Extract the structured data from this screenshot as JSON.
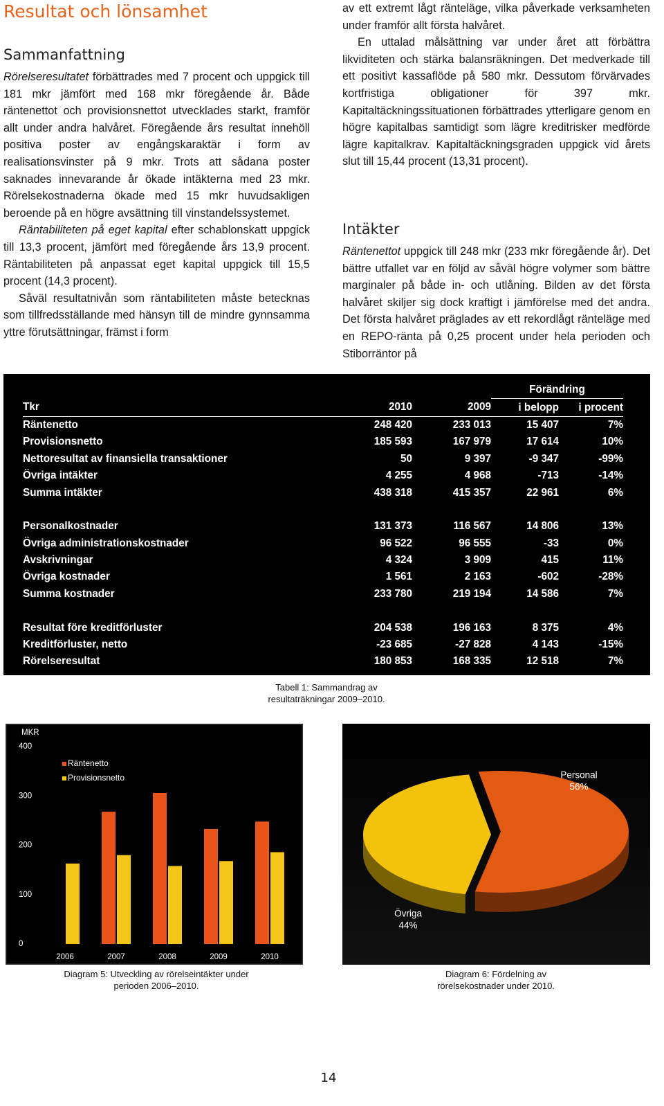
{
  "header": {
    "title": "Resultat och lönsamhet"
  },
  "left_column": {
    "heading": "Sammanfattning",
    "paragraphs": [
      {
        "lead": "Rörelseresultatet",
        "text": "förbättrades med 7 procent och uppgick till 181 mkr jämfört med 168 mkr föregående år. Både räntenettot och provisionsnettot utvecklades starkt, framför allt under andra halvåret. Föregående års resultat innehöll positiva poster av engångskaraktär i form av realisationsvinster på 9 mkr. Trots att sådana poster saknades innevarande år ökade intäkterna med 23 mkr. Rörelsekostnaderna ökade med 15 mkr huvudsakligen beroende på en högre avsättning till vinstandelssystemet."
      },
      {
        "lead": "Räntabiliteten på eget kapital",
        "text": "efter schablonskatt uppgick till 13,3 procent, jämfört med föregående års 13,9 procent. Räntabiliteten på anpassat eget kapital uppgick till 15,5 procent (14,3 procent)."
      },
      {
        "text": "Såväl resultatnivån som räntabiliteten måste betecknas som tillfredsställande med hänsyn till de mindre gynnsamma yttre förutsättningar, främst i form"
      }
    ]
  },
  "right_column": {
    "paragraphs": [
      {
        "text": "av ett extremt lågt ränteläge, vilka påverkade verksamheten under framför allt första halvåret."
      },
      {
        "text": "En uttalad målsättning var under året att förbättra likviditeten och stärka balansräkningen. Det medverkade till ett positivt kassaflöde på 580 mkr. Dessutom förvärvades kortfristiga obligationer för 397 mkr. Kapitaltäckningssituationen förbättrades ytterligare genom en högre kapitalbas samtidigt som lägre kreditrisker medförde lägre kapitalkrav. Kapitaltäckningsgraden uppgick vid årets slut till 15,44 procent (13,31 procent)."
      }
    ],
    "section": {
      "heading": "Intäkter",
      "paragraphs": [
        {
          "lead": "Räntenettot",
          "text": "uppgick till 248 mkr (233 mkr föregående år). Det bättre utfallet var en följd av såväl högre volymer som bättre marginaler på både in- och utlåning. Bilden av det första halvåret skiljer sig dock kraftigt i jämförelse med det andra. Det första halvåret präglades av ett rekordlågt ränteläge med en REPO-ränta på 0,25 procent under hela perioden och Stiborräntor på"
        }
      ]
    }
  },
  "table": {
    "group_header": "Förändring",
    "columns": [
      "Tkr",
      "2010",
      "2009",
      "i belopp",
      "i procent"
    ],
    "row_groups": [
      [
        [
          "Räntenetto",
          "248 420",
          "233 013",
          "15 407",
          "7%"
        ],
        [
          "Provisionsnetto",
          "185 593",
          "167 979",
          "17 614",
          "10%"
        ],
        [
          "Nettoresultat av finansiella transaktioner",
          "50",
          "9 397",
          "-9 347",
          "-99%"
        ],
        [
          "Övriga intäkter",
          "4 255",
          "4 968",
          "-713",
          "-14%"
        ],
        [
          "Summa intäkter",
          "438 318",
          "415 357",
          "22 961",
          "6%"
        ]
      ],
      [
        [
          "Personalkostnader",
          "131 373",
          "116 567",
          "14 806",
          "13%"
        ],
        [
          "Övriga administrationskostnader",
          "96 522",
          "96 555",
          "-33",
          "0%"
        ],
        [
          "Avskrivningar",
          "4 324",
          "3 909",
          "415",
          "11%"
        ],
        [
          "Övriga kostnader",
          "1 561",
          "2 163",
          "-602",
          "-28%"
        ],
        [
          "Summa kostnader",
          "233 780",
          "219 194",
          "14 586",
          "7%"
        ]
      ],
      [
        [
          "Resultat före kreditförluster",
          "204 538",
          "196 163",
          "8 375",
          "4%"
        ],
        [
          "Kreditförluster, netto",
          "-23 685",
          "-27 828",
          "4 143",
          "-15%"
        ],
        [
          "Rörelseresultat",
          "180 853",
          "168 335",
          "12 518",
          "7%"
        ]
      ]
    ],
    "caption": "Tabell 1: Sammandrag av resultaträkningar 2009–2010."
  },
  "chart_data": [
    {
      "type": "bar",
      "y_label": "MKR",
      "categories": [
        "2006",
        "2007",
        "2008",
        "2009",
        "2010"
      ],
      "series": [
        {
          "name": "Räntenetto",
          "color": "#e8541a",
          "values": [
            null,
            268,
            306,
            233,
            248
          ]
        },
        {
          "name": "Provisionsnetto",
          "color": "#f5c518",
          "values": [
            163,
            180,
            158,
            168,
            186
          ]
        }
      ],
      "ylim": [
        0,
        400
      ],
      "yticks": [
        0,
        100,
        200,
        300,
        400
      ],
      "caption": "Diagram 5: Utveckling av rörelseintäkter under perioden 2006–2010."
    },
    {
      "type": "pie",
      "categories": [
        "Personal",
        "Övriga"
      ],
      "values": [
        56,
        44
      ],
      "value_labels": [
        "56%",
        "44%"
      ],
      "colors": [
        "#e35a12",
        "#f2c20c"
      ],
      "caption": "Diagram 6: Fördelning av rörelsekostnader under 2010."
    }
  ],
  "page_number": "14"
}
